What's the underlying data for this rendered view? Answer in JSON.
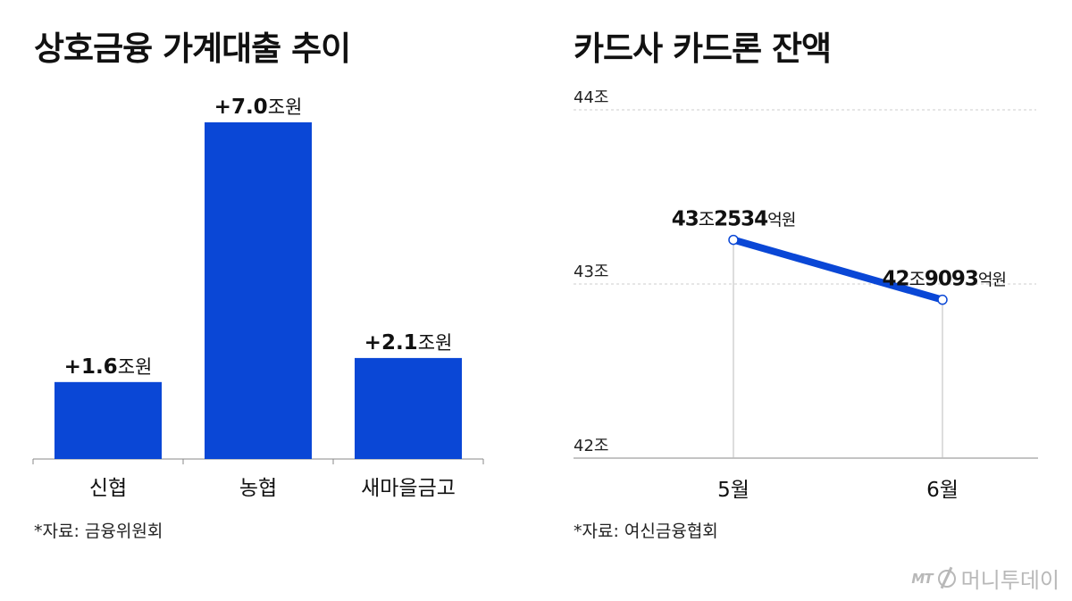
{
  "left_chart": {
    "title": "상호금융 가계대출 추이",
    "source": "*자료: 금융위원회"
  },
  "right_chart": {
    "title": "카드사 카드론 잔액",
    "source": "*자료: 여신금융협회"
  },
  "logo": {
    "mark": "MT",
    "name": "머니투데이"
  },
  "colors": {
    "bar": "#0a47d6",
    "line": "#0a47d6",
    "grid": "#cccccc",
    "axis": "#888888"
  },
  "chart_data": [
    {
      "type": "bar",
      "title": "상호금융 가계대출 추이",
      "categories": [
        "신협",
        "농협",
        "새마을금고"
      ],
      "values": [
        1.6,
        7.0,
        2.1
      ],
      "labels": [
        {
          "prefix": "+",
          "value": "1.6",
          "unit": "조원"
        },
        {
          "prefix": "+",
          "value": "7.0",
          "unit": "조원"
        },
        {
          "prefix": "+",
          "value": "2.1",
          "unit": "조원"
        }
      ],
      "ylim": [
        0,
        7.6
      ],
      "grid": false
    },
    {
      "type": "line",
      "title": "카드사 카드론 잔액",
      "x": [
        "5월",
        "6월"
      ],
      "values": [
        43.2534,
        42.9093
      ],
      "point_labels": [
        {
          "major": "43",
          "major_unit": "조",
          "minor": "2534",
          "minor_unit": "억원"
        },
        {
          "major": "42",
          "major_unit": "조",
          "minor": "9093",
          "minor_unit": "억원"
        }
      ],
      "yticks": [
        42,
        43,
        44
      ],
      "ytick_labels": [
        "42조",
        "43조",
        "44조"
      ],
      "ylim": [
        42,
        44
      ],
      "grid": true
    }
  ]
}
